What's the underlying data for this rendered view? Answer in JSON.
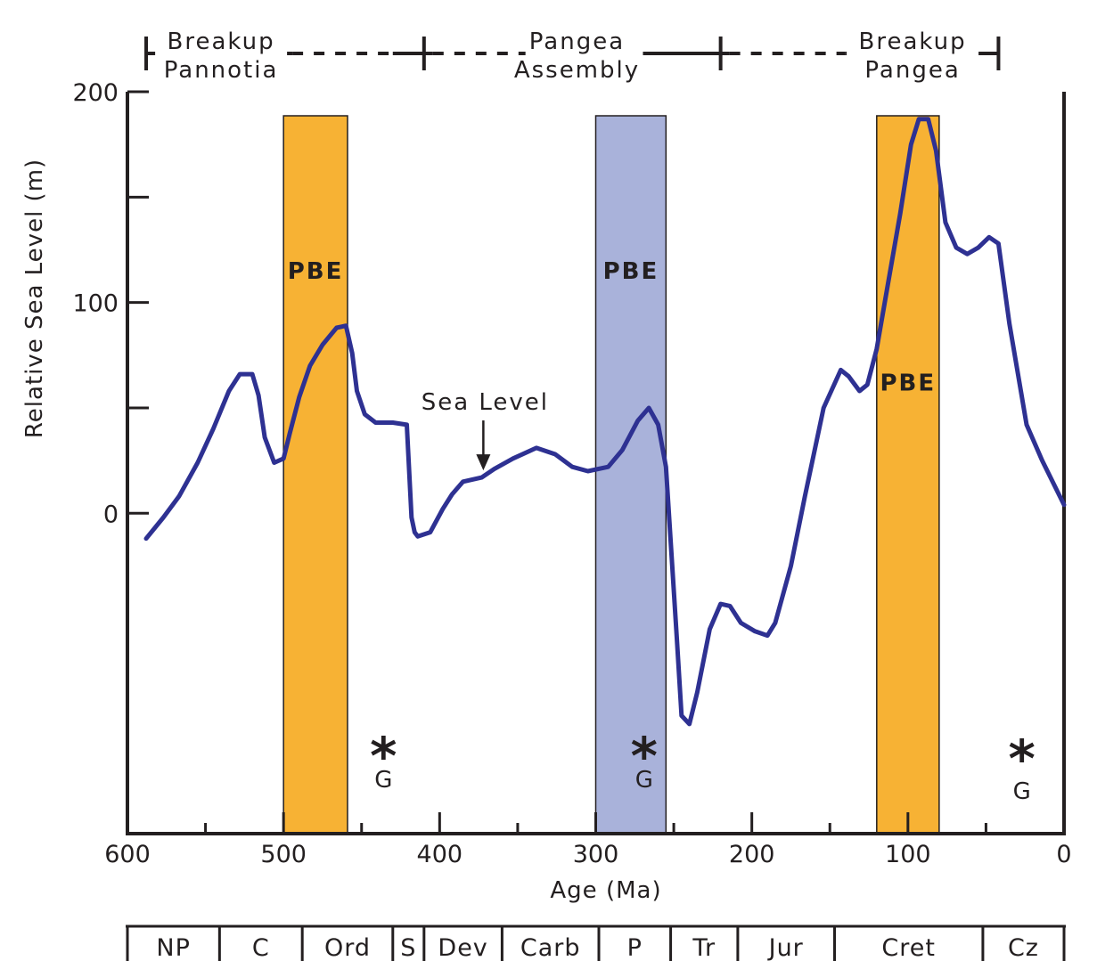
{
  "chart_data": {
    "type": "line",
    "title": "",
    "xlabel": "Age (Ma)",
    "ylabel": "Relative Sea Level (m)",
    "xlim": [
      600,
      0
    ],
    "ylim": [
      -152,
      200
    ],
    "x_ticks": [
      600,
      500,
      400,
      300,
      200,
      100,
      0
    ],
    "y_ticks": [
      0,
      100,
      200
    ],
    "grid": false,
    "series": [
      {
        "color": "#2e3192",
        "x": [
          588,
          577,
          567,
          555,
          545,
          535,
          528,
          520,
          516,
          512,
          506,
          500,
          496,
          490,
          483,
          475,
          466,
          460,
          456,
          453,
          448,
          441,
          430,
          421,
          418,
          416,
          414,
          406,
          398,
          392,
          385,
          379,
          373,
          365,
          353,
          338,
          326,
          315,
          305,
          292,
          283,
          273,
          266,
          260,
          255,
          248,
          245,
          240,
          235,
          227,
          220,
          214,
          207,
          198,
          190,
          185,
          175,
          166,
          154,
          143,
          138,
          131,
          126,
          120,
          113,
          105,
          98,
          93,
          87,
          82,
          76,
          69,
          62,
          55,
          48,
          42,
          35,
          24,
          14,
          0
        ],
        "y": [
          -12,
          -2,
          8,
          24,
          40,
          58,
          66,
          66,
          56,
          36,
          24,
          26,
          38,
          55,
          70,
          80,
          88,
          89,
          76,
          58,
          47,
          43,
          43,
          42,
          -2,
          -9,
          -11,
          -9,
          2,
          9,
          15,
          16,
          17,
          21,
          26,
          31,
          28,
          22,
          20,
          22,
          30,
          44,
          50,
          42,
          22,
          -60,
          -96,
          -100,
          -85,
          -55,
          -43,
          -44,
          -52,
          -56,
          -58,
          -52,
          -25,
          8,
          50,
          68,
          65,
          58,
          61,
          78,
          108,
          142,
          175,
          187,
          187,
          172,
          138,
          126,
          123,
          126,
          131,
          128,
          90,
          42,
          25,
          4
        ]
      }
    ],
    "bands": [
      {
        "label": "PBE",
        "x_start": 500,
        "x_end": 459,
        "color": "#f7b234",
        "label_y": 115
      },
      {
        "label": "PBE",
        "x_start": 300,
        "x_end": 255,
        "color": "#a9b2da",
        "label_y": 115
      },
      {
        "label": "PBE",
        "x_start": 120,
        "x_end": 80,
        "color": "#f7b234",
        "label_y": 62
      }
    ],
    "glaciation_markers": [
      {
        "symbol": "*",
        "label": "G",
        "x": 436
      },
      {
        "symbol": "*",
        "label": "G",
        "x": 269
      },
      {
        "symbol": "*",
        "label": "G",
        "x": 27
      }
    ],
    "annotations": [
      {
        "text": "Sea Level",
        "x": 372,
        "y": 17,
        "arrow": "down"
      }
    ],
    "phases": [
      {
        "line1": "Breakup",
        "line2": "Pannotia",
        "x_start": 588,
        "x_end": 410,
        "label_x": 540
      },
      {
        "line1": "Pangea",
        "line2": "Assembly",
        "x_start": 410,
        "x_end": 220,
        "label_x": 312
      },
      {
        "line1": "Breakup",
        "line2": "Pangea",
        "x_start": 220,
        "x_end": 42,
        "label_x": 97
      }
    ],
    "periods": [
      {
        "label": "NP",
        "x_start": 600,
        "x_end": 541
      },
      {
        "label": "C",
        "x_start": 541,
        "x_end": 488
      },
      {
        "label": "Ord",
        "x_start": 488,
        "x_end": 430
      },
      {
        "label": "S",
        "x_start": 430,
        "x_end": 410
      },
      {
        "label": "Dev",
        "x_start": 410,
        "x_end": 360
      },
      {
        "label": "Carb",
        "x_start": 360,
        "x_end": 298
      },
      {
        "label": "P",
        "x_start": 298,
        "x_end": 252
      },
      {
        "label": "Tr",
        "x_start": 252,
        "x_end": 209
      },
      {
        "label": "Jur",
        "x_start": 209,
        "x_end": 147
      },
      {
        "label": "Cret",
        "x_start": 147,
        "x_end": 52
      },
      {
        "label": "Cz",
        "x_start": 52,
        "x_end": 0
      }
    ]
  }
}
